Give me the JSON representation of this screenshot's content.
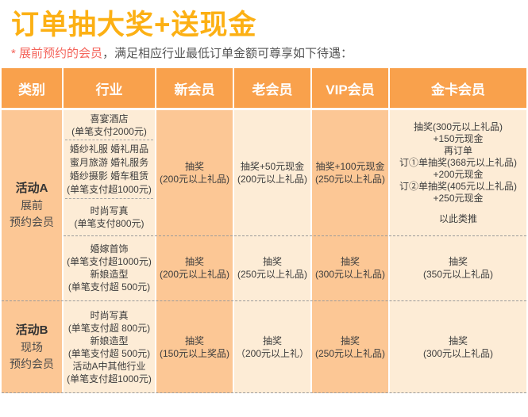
{
  "page": {
    "title": "订单抽大奖+送现金",
    "subtitle_highlight": "* 展前预约的会员",
    "subtitle_rest": "，满足相应行业最低订单金额可尊享如下待遇："
  },
  "colors": {
    "header_bg": "#F9A14C",
    "cell_medium": "#FCC795",
    "cell_light": "#FDECD6",
    "title_accent": "#FCB014",
    "subtitle_highlight": "#F4655C"
  },
  "table": {
    "headers": [
      "类别",
      "行业",
      "新会员",
      "老会员",
      "VIP会员",
      "金卡会员"
    ],
    "group_a": {
      "category_title": "活动A",
      "category_sub": "展前\n预约会员",
      "upper": {
        "industries": [
          "喜宴酒店\n(单笔支付2000元)",
          "婚纱礼服 婚礼用品\n蜜月旅游 婚礼服务\n婚纱摄影 婚车租赁\n(单笔支付超1000元)",
          "时尚写真\n(单笔支付800元)"
        ],
        "new_member": "抽奖\n(200元以上礼品)",
        "old_member": "抽奖+50元现金\n(200元以上礼品)",
        "vip_member": "抽奖+100元现金\n(250元以上礼品)",
        "gold_member": "抽奖(300元以上礼品)\n+150元现金\n再订单\n订①单抽奖(368元以上礼品)\n+200元现金\n订②单抽奖(405元以上礼品)\n+250元现金",
        "gold_member_note": "以此类推"
      },
      "lower": {
        "industry": "婚嫁首饰\n(单笔支付超1000元)\n新娘造型\n(单笔支付超 500元)",
        "new_member": "抽奖\n(200元以上礼品)",
        "old_member": "抽奖\n(250元以上礼品)",
        "vip_member": "抽奖\n(300元以上礼品)",
        "gold_member": "抽奖\n(350元以上礼品)"
      }
    },
    "group_b": {
      "category_title": "活动B",
      "category_sub": "现场\n预约会员",
      "industry": "时尚写真\n(单笔支付超 800元)\n新娘造型\n(单笔支付超 500元)\n活动A中其他行业\n(单笔支付超1000元)",
      "new_member": "抽奖\n(150元以上奖品)",
      "old_member": "抽奖\n（200元以上礼）",
      "vip_member": "抽奖\n(250元以上礼品)",
      "gold_member": "抽奖\n(300元以上礼品)"
    }
  }
}
